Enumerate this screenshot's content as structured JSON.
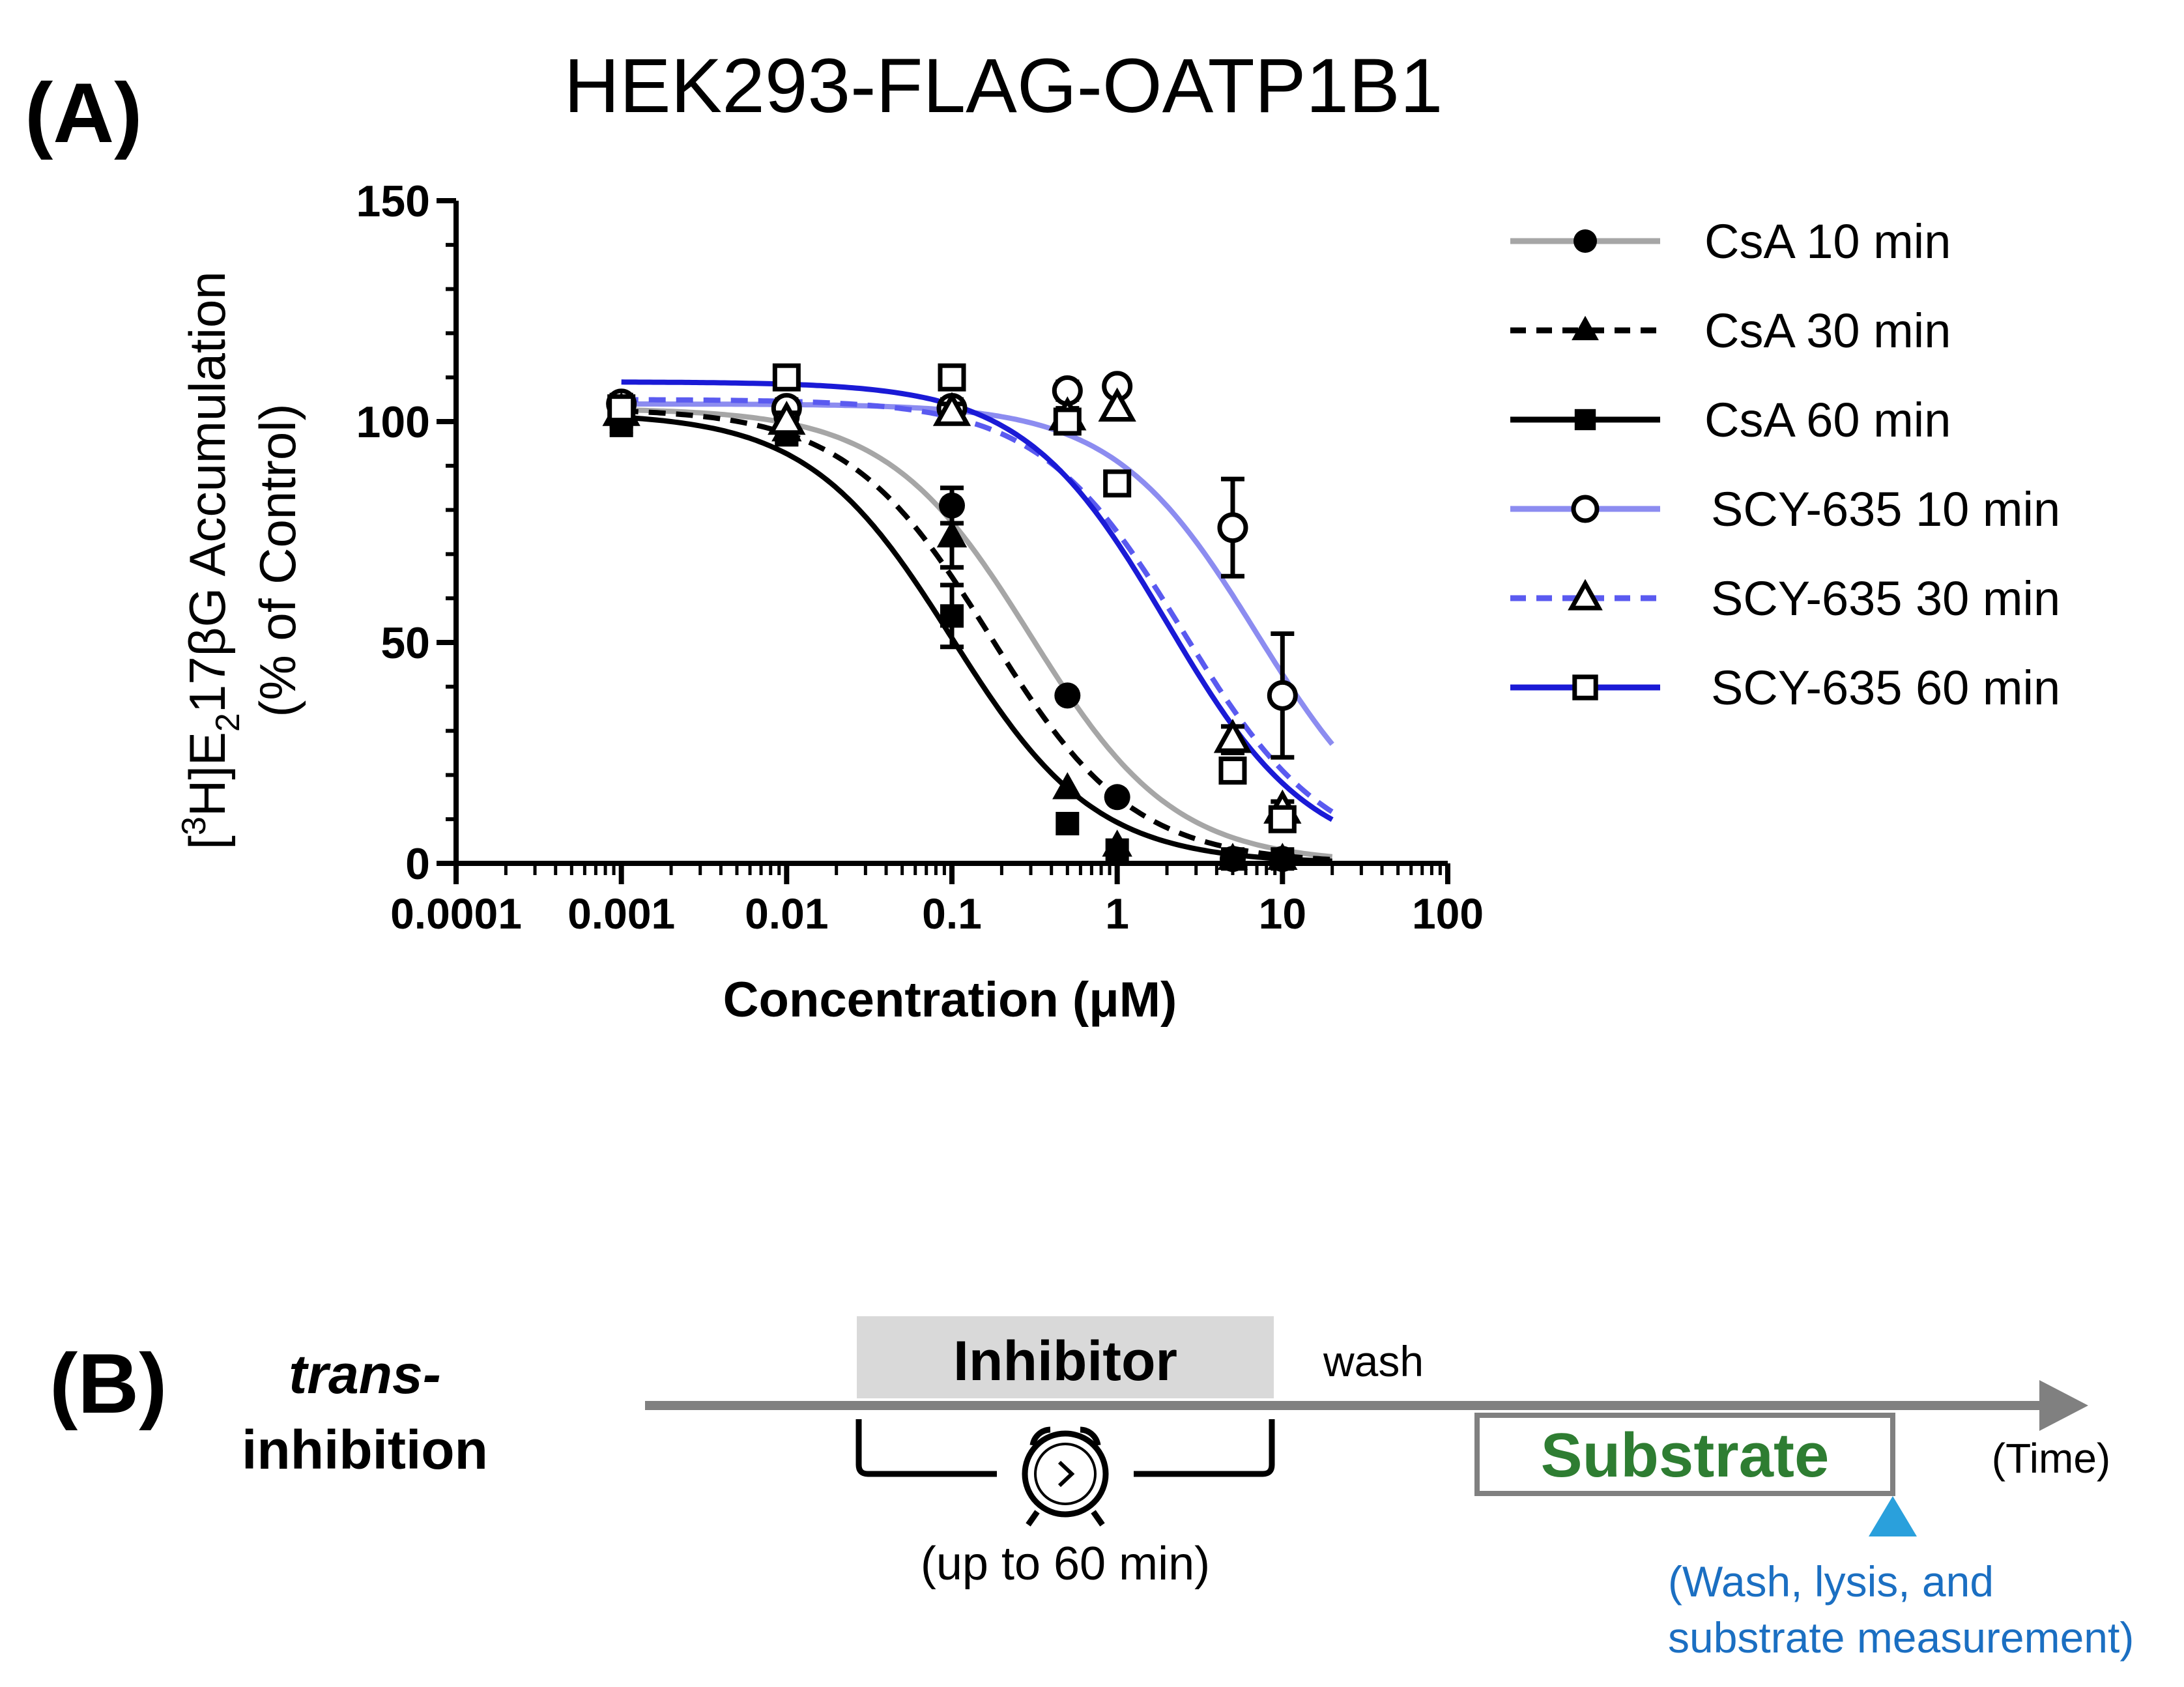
{
  "colors": {
    "csa10": "#a6a6a6",
    "csa30": "#000000",
    "csa60": "#000000",
    "scy10": "#8c8cf0",
    "scy30": "#5a5af0",
    "scy60": "#1a1ad6",
    "axis": "#000000",
    "timeline": "#808080",
    "inhibitor_box": "#d9d9d9",
    "substrate_text": "#2e7d32",
    "marker": "#2aa0dc",
    "note_text": "#1b6fc2"
  },
  "panel_a": {
    "label": "(A)",
    "title": "HEK293-FLAG-OATP1B1"
  },
  "panel_b": {
    "label": "(B)",
    "mode_line1": "trans-",
    "mode_line2": "inhibition",
    "inhibitor_label": "Inhibitor",
    "wash_label": "wash",
    "duration_label": "(up to 60 min)",
    "substrate_label": "Substrate",
    "time_label": "(Time)",
    "note_line1": "(Wash, lysis, and",
    "note_line2": "substrate measurement)",
    "clock_icon": "alarm-clock-icon"
  },
  "chart_data": {
    "type": "scatter",
    "title": "HEK293-FLAG-OATP1B1",
    "xlabel": "Concentration (μM)",
    "ylabel_line1_parts": [
      "[",
      "3",
      "H]E",
      "2",
      "17βG Accumulation"
    ],
    "ylabel_line2": "(% of Control)",
    "xscale": "log",
    "xlim": [
      0.0001,
      100
    ],
    "ylim": [
      0,
      150
    ],
    "xticks": [
      "0.0001",
      "0.001",
      "0.01",
      "0.1",
      "1",
      "10",
      "100"
    ],
    "yticks": [
      "0",
      "50",
      "100",
      "150"
    ],
    "legend_position": "right",
    "series": [
      {
        "name": "CsA 10 min",
        "marker": "circle",
        "filled": true,
        "line": "solid",
        "color_key": "csa10",
        "x": [
          0.001,
          0.01,
          0.1,
          0.5,
          1,
          5,
          10
        ],
        "y": [
          103,
          101,
          81,
          38,
          15,
          1,
          1
        ],
        "err": [
          3,
          2,
          4,
          0,
          0,
          0,
          0
        ],
        "fit": {
          "top": 103,
          "bottom": 0,
          "ic50": 0.3,
          "hill": 1.0
        }
      },
      {
        "name": "CsA 30 min",
        "marker": "triangle",
        "filled": true,
        "line": "dashed",
        "color_key": "csa30",
        "x": [
          0.001,
          0.01,
          0.1,
          0.5,
          1,
          5,
          10
        ],
        "y": [
          102,
          98,
          74,
          17,
          4,
          1,
          1
        ],
        "err": [
          3,
          2,
          7,
          0,
          0,
          0,
          0
        ],
        "fit": {
          "top": 103,
          "bottom": 0,
          "ic50": 0.17,
          "hill": 1.0
        }
      },
      {
        "name": "CsA 60 min",
        "marker": "square",
        "filled": true,
        "line": "solid",
        "color_key": "csa60",
        "x": [
          0.001,
          0.01,
          0.1,
          0.5,
          1,
          5,
          10
        ],
        "y": [
          100,
          97,
          56,
          9,
          3,
          1,
          1
        ],
        "err": [
          3,
          2,
          7,
          0,
          0,
          0,
          0
        ],
        "fit": {
          "top": 102,
          "bottom": 0,
          "ic50": 0.1,
          "hill": 1.0
        }
      },
      {
        "name": "SCY-635 10 min",
        "marker": "circle",
        "filled": false,
        "line": "solid",
        "color_key": "scy10",
        "x": [
          0.001,
          0.01,
          0.1,
          0.5,
          1,
          5,
          10
        ],
        "y": [
          104,
          103,
          103,
          107,
          108,
          76,
          38
        ],
        "err": [
          2,
          2,
          2,
          2,
          0,
          11,
          14
        ],
        "fit": {
          "top": 104,
          "bottom": 0,
          "ic50": 7,
          "hill": 1.0
        }
      },
      {
        "name": "SCY-635 30 min",
        "marker": "triangle",
        "filled": false,
        "line": "dashed",
        "color_key": "scy30",
        "x": [
          0.001,
          0.01,
          0.1,
          0.5,
          1,
          5,
          10
        ],
        "y": [
          102,
          100,
          102,
          101,
          103,
          28,
          12
        ],
        "err": [
          2,
          2,
          2,
          2,
          0,
          3,
          2
        ],
        "fit": {
          "top": 105,
          "bottom": 0,
          "ic50": 2.5,
          "hill": 1.0
        }
      },
      {
        "name": "SCY-635 60 min",
        "marker": "square",
        "filled": false,
        "line": "solid",
        "color_key": "scy60",
        "x": [
          0.001,
          0.01,
          0.1,
          0.5,
          1,
          5,
          10
        ],
        "y": [
          103,
          110,
          110,
          100,
          86,
          21,
          10
        ],
        "err": [
          2,
          0,
          0,
          0,
          0,
          0,
          2
        ],
        "fit": {
          "top": 109,
          "bottom": 0,
          "ic50": 2.0,
          "hill": 1.0
        }
      }
    ]
  }
}
